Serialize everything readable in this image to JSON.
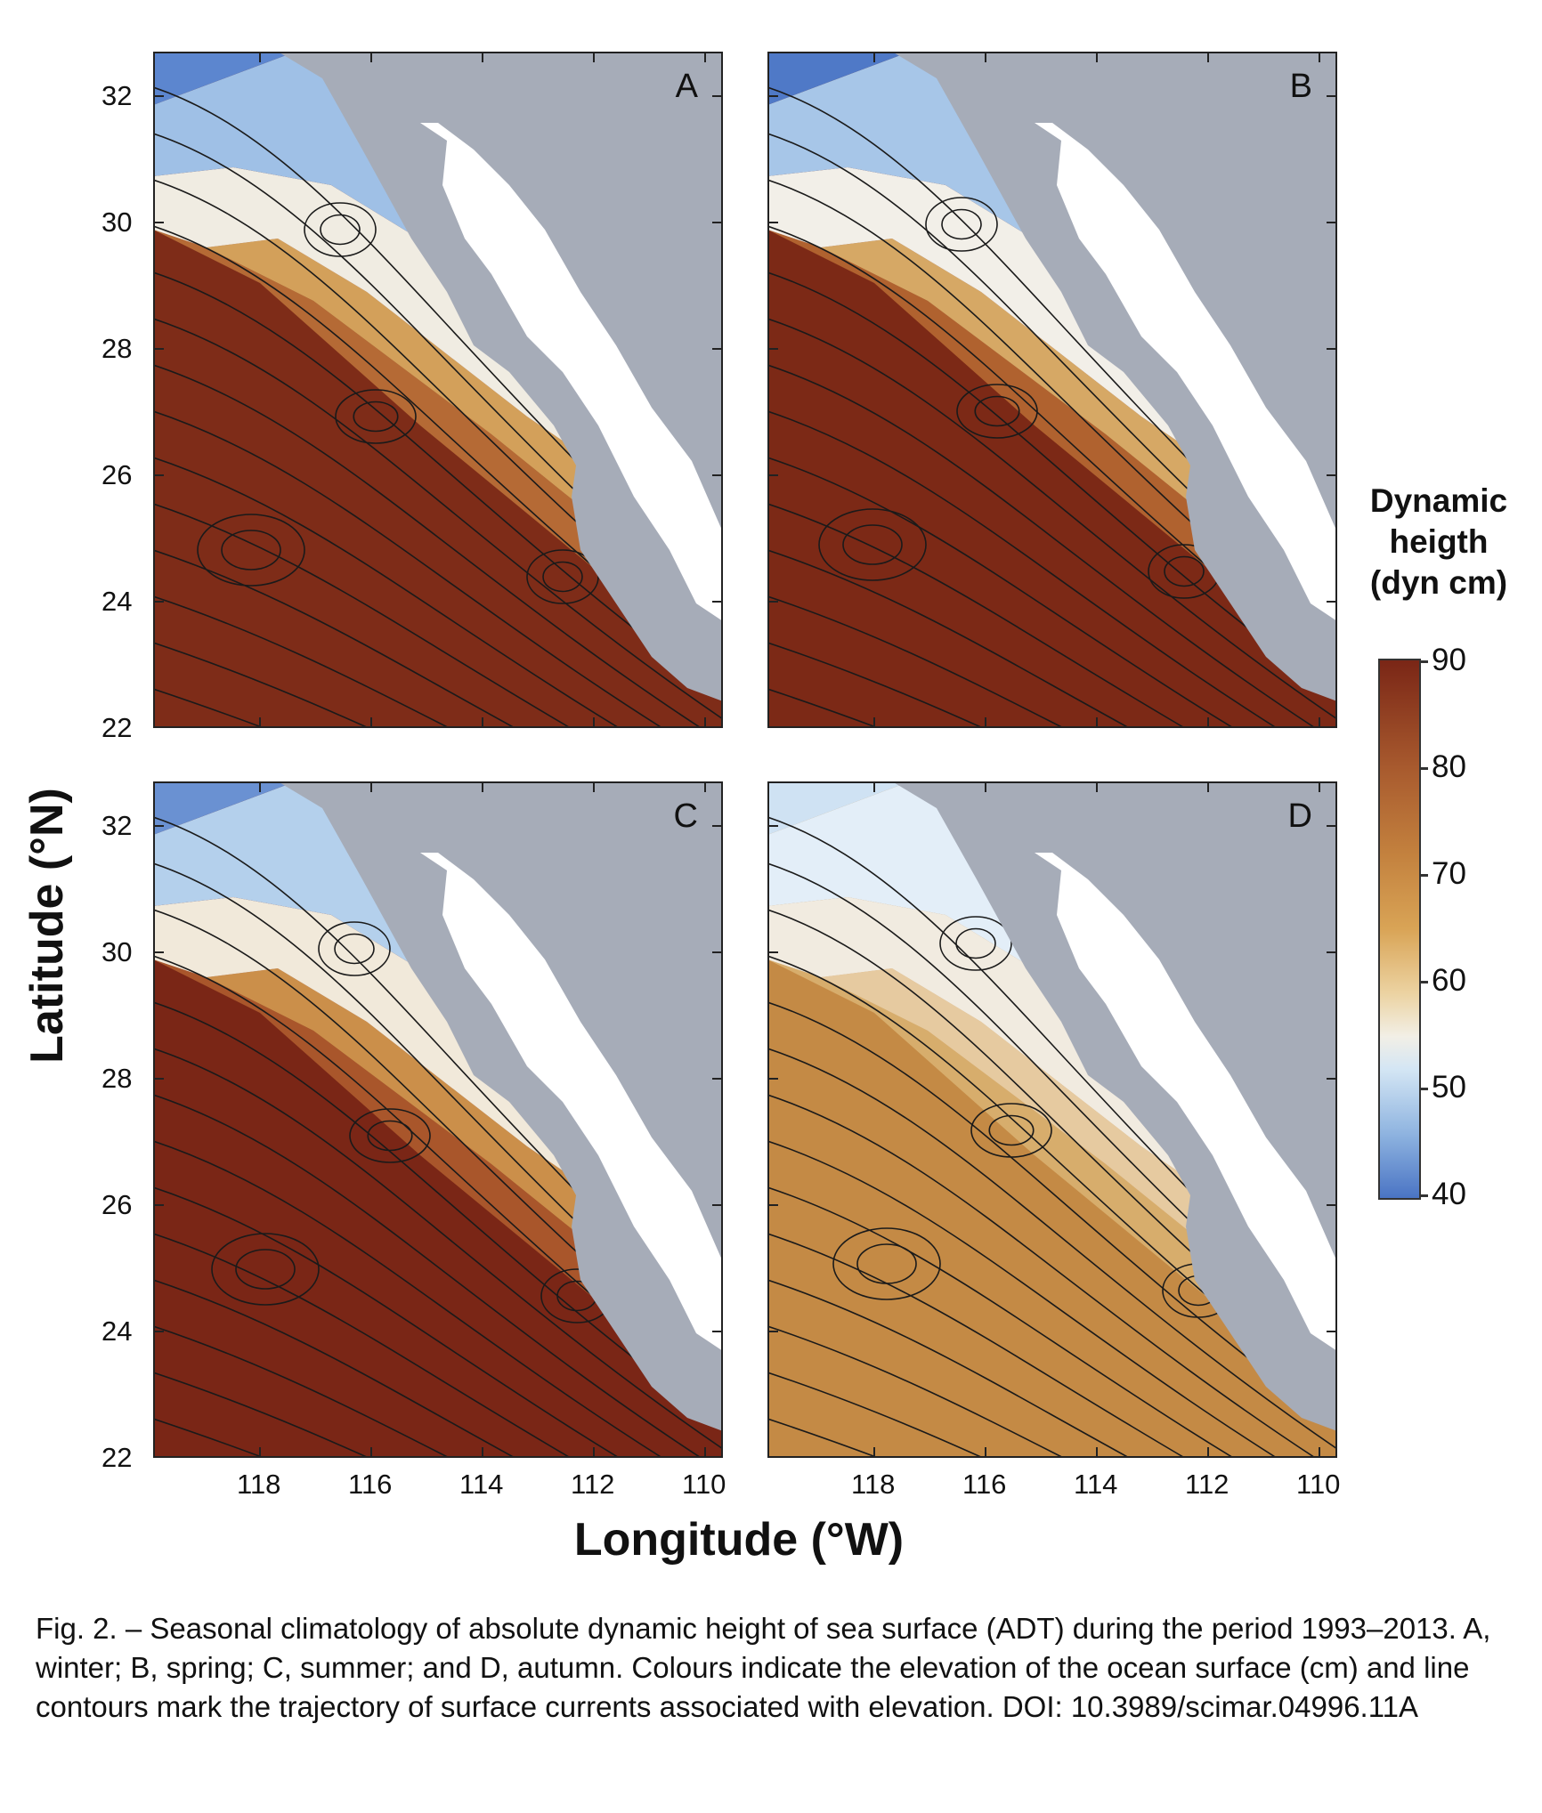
{
  "figure": {
    "y_axis_label": "Latitude (°N)",
    "x_axis_label": "Longitude (°W)",
    "y_ticks": [
      "32",
      "30",
      "28",
      "26",
      "24",
      "22"
    ],
    "x_ticks": [
      "118",
      "116",
      "114",
      "112",
      "110"
    ],
    "panels": [
      {
        "letter": "A",
        "season": "winter"
      },
      {
        "letter": "B",
        "season": "spring"
      },
      {
        "letter": "C",
        "season": "summer"
      },
      {
        "letter": "D",
        "season": "autumn"
      }
    ]
  },
  "colorbar": {
    "title_lines": [
      "Dynamic",
      "heigth",
      "(dyn cm)"
    ],
    "ticks": [
      "90",
      "80",
      "70",
      "60",
      "50",
      "40"
    ],
    "min": 40,
    "max": 90,
    "colors": {
      "low": "#4a74c4",
      "mid": "#f2efe6",
      "high": "#7a2616"
    }
  },
  "map_colors": {
    "land": "#a6acb8",
    "gulf_island": "#ffffff",
    "contour": "#1a1a1a"
  },
  "caption": "Fig. 2. – Seasonal climatology of absolute dynamic height of sea surface (ADT) during the period 1993–2013. A, winter; B, spring; C, summer; and D, autumn. Colours indicate the elevation of the ocean surface (cm) and line contours mark the trajectory of surface currents associated with elevation. DOI: 10.3989/scimar.04996.11A"
}
